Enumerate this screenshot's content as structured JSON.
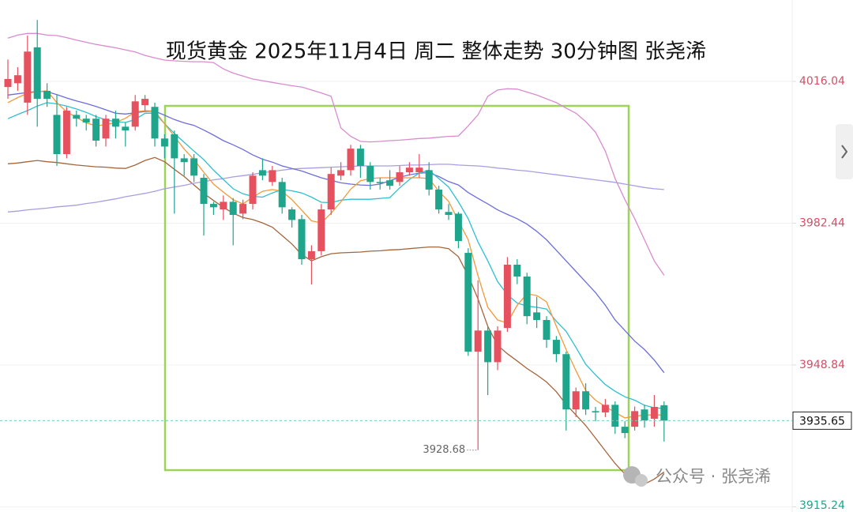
{
  "chart_data": {
    "type": "candlestick",
    "title": "现货黄金 2025年11月4日 周二 整体走势 30分钟图 张尧浠",
    "up_color": "#e5515f",
    "down_color": "#1fa58b",
    "open": [
      4014.7,
      4015.6,
      4011.0,
      4024.1,
      4013.8,
      4008.1,
      3998.8,
      4008.1,
      4007.2,
      4007.2,
      4002.5,
      4007.2,
      4005.3,
      4005.3,
      4010.4,
      4010.0,
      4002.5,
      4003.5,
      3997.8,
      3997.8,
      3993.2,
      3987.0,
      3985.7,
      3987.5,
      3984.7,
      3987.0,
      3995.0,
      3992.2,
      3992.2,
      3985.7,
      3983.4,
      3973.9,
      3975.8,
      3985.7,
      3993.7,
      3995.0,
      4000.1,
      3996.0,
      3992.2,
      3992.6,
      3992.2,
      3994.5,
      3994.5,
      3995.0,
      3990.4,
      3985.1,
      3984.7,
      3975.4,
      3952.0,
      3957.0,
      3949.5,
      3957.6,
      3972.6,
      3969.8,
      3961.3,
      3959.5,
      3954.8,
      3951.4,
      3938.3,
      3942.6,
      3937.9,
      3937.6,
      3939.4,
      3934.2,
      3934.2,
      3938.3,
      3936.1,
      3939.3
    ],
    "high": [
      4021.2,
      4019.4,
      4026.9,
      4030.6,
      4015.6,
      4012.8,
      4010.0,
      4009.1,
      4008.1,
      4008.1,
      4008.1,
      4009.1,
      4006.3,
      4012.8,
      4012.8,
      4011.0,
      4003.5,
      4004.4,
      3998.8,
      3998.8,
      3994.1,
      3987.5,
      3989.0,
      3988.4,
      3988.0,
      3994.5,
      3997.8,
      3996.0,
      3993.2,
      3986.2,
      3984.4,
      3977.2,
      3987.0,
      3995.6,
      3996.9,
      4001.0,
      4001.0,
      3996.9,
      3993.2,
      3995.0,
      3996.0,
      3996.9,
      3998.8,
      3996.9,
      3991.3,
      3987.0,
      3985.1,
      3976.5,
      3968.9,
      3958.0,
      3958.0,
      3974.4,
      3973.9,
      3970.7,
      3965.0,
      3960.4,
      3955.7,
      3952.0,
      3943.5,
      3944.5,
      3938.9,
      3940.8,
      3940.2,
      3935.5,
      3939.0,
      3939.4,
      3941.7,
      3940.2
    ],
    "low": [
      4011.9,
      4013.8,
      4008.1,
      4005.3,
      4010.0,
      3996.0,
      3997.8,
      4005.3,
      4004.4,
      4000.6,
      4000.6,
      4002.5,
      4000.6,
      4004.4,
      4009.1,
      4000.6,
      3997.8,
      3984.7,
      3993.7,
      3992.2,
      3979.5,
      3984.4,
      3983.2,
      3977.2,
      3983.4,
      3985.7,
      3992.6,
      3991.3,
      3984.7,
      3981.4,
      3972.6,
      3967.9,
      3974.8,
      3984.4,
      3992.6,
      3993.7,
      3993.2,
      3990.4,
      3990.4,
      3990.4,
      3991.3,
      3993.7,
      3993.2,
      3989.0,
      3984.7,
      3983.2,
      3976.5,
      3951.0,
      3928.68,
      3941.7,
      3947.6,
      3956.7,
      3968.0,
      3958.5,
      3957.6,
      3952.9,
      3949.5,
      3933.3,
      3936.5,
      3937.0,
      3935.5,
      3936.5,
      3932.5,
      3931.5,
      3933.3,
      3934.0,
      3934.2,
      3930.7
    ],
    "close": [
      4016.6,
      4017.5,
      4023.1,
      4011.9,
      4011.9,
      3998.8,
      4009.1,
      4007.2,
      4006.3,
      4002.0,
      4007.2,
      4005.3,
      4004.4,
      4011.3,
      4011.9,
      4002.5,
      4000.6,
      3997.8,
      3996.9,
      3993.7,
      3987.0,
      3986.2,
      3987.5,
      3984.4,
      3987.0,
      3993.7,
      3993.7,
      3995.0,
      3986.2,
      3983.2,
      3973.9,
      3975.8,
      3985.7,
      3994.1,
      3995.0,
      4000.1,
      3996.0,
      3992.2,
      3991.9,
      3991.3,
      3994.5,
      3995.6,
      3995.6,
      3990.4,
      3985.7,
      3984.4,
      3978.2,
      3952.0,
      3957.0,
      3949.5,
      3957.0,
      3972.6,
      3969.8,
      3960.4,
      3959.5,
      3954.8,
      3951.4,
      3938.3,
      3942.6,
      3938.3,
      3937.6,
      3939.4,
      3934.2,
      3932.7,
      3937.9,
      3935.7,
      3938.9,
      3935.65
    ],
    "lines": [
      {
        "color": "#d98bd0",
        "values": [
          4026.3,
          4027.0,
          4027.4,
          4027.4,
          4027.0,
          4026.9,
          4026.4,
          4025.8,
          4025.3,
          4024.8,
          4024.4,
          4024.0,
          4023.5,
          4023.0,
          4022.2,
          4021.6,
          4021.1,
          4020.9,
          4020.8,
          4020.7,
          4020.7,
          4020.5,
          4019.0,
          4018.0,
          4017.3,
          4016.6,
          4016.2,
          4015.8,
          4015.4,
          4015.0,
          4014.7,
          4014.0,
          4013.3,
          4012.5,
          4005.0,
          4003.0,
          4001.8,
          4001.7,
          4001.8,
          4002.0,
          4002.1,
          4002.3,
          4002.5,
          4002.6,
          4002.8,
          4003.0,
          4003.1,
          4005.5,
          4008.1,
          4012.5,
          4014.0,
          4014.3,
          4014.2,
          4013.5,
          4012.8,
          4011.9,
          4011.0,
          4009.7,
          4008.5,
          4006.5,
          4004.0,
          3999.5,
          3993.0,
          3988.0,
          3983.5,
          3978.5,
          3973.5,
          3970.1
        ]
      },
      {
        "color": "#a5653c",
        "values": [
          3996.5,
          3996.7,
          3997.0,
          3997.3,
          3997.0,
          3996.8,
          3996.5,
          3996.2,
          3996.0,
          3995.8,
          3995.7,
          3995.5,
          3995.4,
          3996.2,
          3997.3,
          3998.0,
          3997.0,
          3995.2,
          3993.5,
          3991.5,
          3989.5,
          3987.8,
          3986.2,
          3984.8,
          3983.8,
          3983.3,
          3982.5,
          3981.5,
          3979.5,
          3977.5,
          3975.0,
          3973.5,
          3974.5,
          3975.2,
          3975.4,
          3975.5,
          3975.6,
          3975.8,
          3975.9,
          3976.1,
          3976.2,
          3976.4,
          3976.6,
          3976.8,
          3976.8,
          3976.4,
          3974.5,
          3970.0,
          3964.5,
          3958.0,
          3953.5,
          3951.5,
          3949.8,
          3948.0,
          3946.5,
          3944.8,
          3942.5,
          3939.5,
          3937.0,
          3934.5,
          3931.5,
          3928.5,
          3925.5,
          3923.0,
          3921.0,
          3920.6,
          3921.8,
          3923.5
        ]
      },
      {
        "color": "#a79ee3",
        "values": [
          3985.1,
          3985.3,
          3985.6,
          3985.8,
          3986.0,
          3986.3,
          3986.5,
          3986.7,
          3987.1,
          3987.4,
          3987.8,
          3988.2,
          3988.7,
          3989.1,
          3989.5,
          3990.0,
          3990.6,
          3991.0,
          3991.4,
          3991.9,
          3992.3,
          3992.7,
          3993.0,
          3993.4,
          3993.7,
          3994.0,
          3994.4,
          3994.7,
          3995.0,
          3995.3,
          3995.4,
          3995.5,
          3995.6,
          3995.7,
          3995.8,
          3995.9,
          3996.0,
          3996.0,
          3996.0,
          3996.0,
          3996.1,
          3996.2,
          3996.2,
          3996.3,
          3996.4,
          3996.4,
          3996.2,
          3996.1,
          3996.0,
          3995.8,
          3995.5,
          3995.3,
          3995.0,
          3994.8,
          3994.5,
          3994.2,
          3993.9,
          3993.6,
          3993.3,
          3993.0,
          3992.7,
          3992.4,
          3992.1,
          3991.7,
          3991.3,
          3990.9,
          3990.6,
          3990.4
        ]
      },
      {
        "color": "#6d6ddc",
        "values": [
          4012.8,
          4013.1,
          4013.4,
          4013.7,
          4013.6,
          4012.9,
          4012.1,
          4011.4,
          4010.8,
          4010.1,
          4009.3,
          4008.5,
          4008.3,
          4008.6,
          4008.9,
          4009.0,
          4008.0,
          4007.0,
          4006.2,
          4005.6,
          4004.5,
          4003.3,
          4002.0,
          4001.0,
          3999.9,
          3998.6,
          3997.6,
          3996.9,
          3996.0,
          3995.4,
          3994.8,
          3994.0,
          3993.2,
          3992.6,
          3992.0,
          3991.7,
          3991.5,
          3991.4,
          3991.7,
          3992.5,
          3993.3,
          3993.9,
          3994.3,
          3994.4,
          3993.5,
          3992.3,
          3991.5,
          3989.7,
          3988.3,
          3987.0,
          3985.6,
          3984.5,
          3983.5,
          3982.2,
          3980.5,
          3978.5,
          3976.0,
          3973.5,
          3971.0,
          3968.5,
          3966.0,
          3963.0,
          3959.5,
          3957.0,
          3954.5,
          3952.5,
          3950.0,
          3947.0
        ]
      },
      {
        "color": "#2fbfcf",
        "values": [
          4007.2,
          4008.2,
          4009.1,
          4010.2,
          4011.0,
          4010.7,
          4010.2,
          4009.5,
          4008.7,
          4007.7,
          4006.9,
          4006.5,
          4006.3,
          4007.0,
          4008.5,
          4008.5,
          4006.0,
          4003.7,
          4001.6,
          3999.5,
          3997.5,
          3995.0,
          3992.8,
          3990.6,
          3989.4,
          3988.8,
          3988.6,
          3989.6,
          3990.4,
          3990.1,
          3989.6,
          3988.6,
          3987.4,
          3987.3,
          3987.9,
          3988.1,
          3988.1,
          3988.1,
          3988.3,
          3988.5,
          3990.8,
          3992.8,
          3994.3,
          3995.0,
          3993.0,
          3991.0,
          3987.5,
          3983.5,
          3978.0,
          3973.5,
          3968.6,
          3965.5,
          3963.5,
          3962.8,
          3962.5,
          3962.1,
          3959.2,
          3956.8,
          3953.0,
          3949.0,
          3946.5,
          3944.2,
          3942.6,
          3941.3,
          3940.5,
          3939.3,
          3938.7,
          3938.5
        ]
      },
      {
        "color": "#f3993a",
        "values": [
          4011.0,
          4012.2,
          4013.2,
          4013.6,
          4013.8,
          4011.0,
          4008.8,
          4007.5,
          4006.2,
          4005.5,
          4005.8,
          4006.3,
          4007.3,
          4008.8,
          4009.1,
          4009.0,
          4006.0,
          4003.0,
          4000.0,
          3997.5,
          3994.5,
          3991.7,
          3989.8,
          3988.0,
          3987.0,
          3988.6,
          3990.0,
          3990.4,
          3990.0,
          3988.0,
          3985.5,
          3983.0,
          3982.5,
          3984.8,
          3987.5,
          3990.5,
          3992.5,
          3993.0,
          3993.2,
          3993.2,
          3993.2,
          3993.2,
          3993.2,
          3993.0,
          3990.0,
          3987.6,
          3983.0,
          3978.5,
          3970.0,
          3962.5,
          3959.5,
          3958.8,
          3963.0,
          3965.7,
          3965.3,
          3963.8,
          3958.0,
          3952.5,
          3947.5,
          3942.8,
          3940.5,
          3939.0,
          3937.6,
          3936.3,
          3936.7,
          3937.0,
          3937.0,
          3937.0
        ]
      }
    ],
    "last_price": 3935.65,
    "ylim": [
      3914.0,
      4035.32
    ],
    "yticks": [
      4016.04,
      3982.44,
      3948.84,
      3915.24
    ],
    "grid": true,
    "watermark": "公众号 · 张尧浠"
  }
}
